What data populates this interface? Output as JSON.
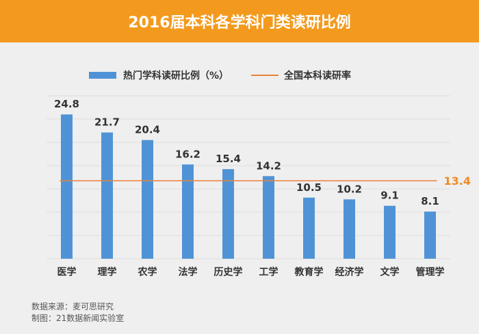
{
  "header": {
    "title": "2016届本科各学科门类读研比例"
  },
  "legend": {
    "bar_label": "热门学科读研比例（%）",
    "line_label": "全国本科读研率"
  },
  "colors": {
    "banner": "#f39a1e",
    "bar": "#4f93d6",
    "line": "#e8823a",
    "line_label": "#f08a24"
  },
  "chart_data": {
    "type": "bar",
    "categories": [
      "医学",
      "理学",
      "农学",
      "法学",
      "历史学",
      "工学",
      "教育学",
      "经济学",
      "文学",
      "管理学"
    ],
    "values": [
      24.8,
      21.7,
      20.4,
      16.2,
      15.4,
      14.2,
      10.5,
      10.2,
      9.1,
      8.1
    ],
    "value_labels": [
      "24.8",
      "21.7",
      "20.4",
      "16.2",
      "15.4",
      "14.2",
      "10.5",
      "10.2",
      "9.1",
      "8.1"
    ],
    "reference_line": {
      "value": 13.4,
      "label": "13.4"
    },
    "ylim": [
      0,
      28
    ],
    "grid": true,
    "legend_position": "top"
  },
  "footer": {
    "source": "数据来源：麦可思研究",
    "credit": "制图：21数据新闻实验室"
  }
}
